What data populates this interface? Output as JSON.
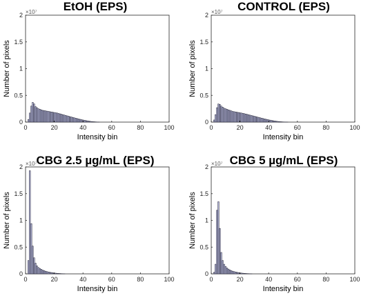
{
  "chart_data": [
    {
      "type": "bar",
      "title": "EtOH (EPS)",
      "xlabel": "Intensity bin",
      "ylabel": "Number of pixels",
      "y_exponent": "×10⁷",
      "xlim": [
        0,
        100
      ],
      "ylim": [
        0,
        2
      ],
      "xticks": [
        "0",
        "20",
        "40",
        "60",
        "80",
        "100"
      ],
      "yticks": [
        "0",
        "0.5",
        "1",
        "1.5",
        "2"
      ],
      "bar_color": "#b9bbe0",
      "x": [
        2,
        3,
        4,
        5,
        6,
        7,
        8,
        9,
        10,
        11,
        12,
        13,
        14,
        15,
        16,
        17,
        18,
        19,
        20,
        21,
        22,
        23,
        24,
        25,
        26,
        27,
        28,
        29,
        30,
        31,
        32,
        33,
        34,
        35,
        36,
        37,
        38,
        39,
        40,
        41,
        42,
        43,
        44,
        45,
        46,
        47,
        48,
        49,
        50,
        51
      ],
      "values": [
        0.05,
        0.17,
        0.3,
        0.37,
        0.34,
        0.29,
        0.27,
        0.25,
        0.24,
        0.23,
        0.22,
        0.215,
        0.21,
        0.205,
        0.2,
        0.195,
        0.19,
        0.185,
        0.18,
        0.175,
        0.17,
        0.162,
        0.155,
        0.148,
        0.14,
        0.132,
        0.125,
        0.117,
        0.11,
        0.102,
        0.095,
        0.088,
        0.08,
        0.073,
        0.066,
        0.059,
        0.052,
        0.046,
        0.04,
        0.034,
        0.029,
        0.024,
        0.019,
        0.015,
        0.011,
        0.008,
        0.006,
        0.004,
        0.002,
        0.001
      ]
    },
    {
      "type": "bar",
      "title": "CONTROL (EPS)",
      "xlabel": "Intensity bin",
      "ylabel": "Number of pixels",
      "y_exponent": "×10⁷",
      "xlim": [
        0,
        100
      ],
      "ylim": [
        0,
        2
      ],
      "xticks": [
        "0",
        "20",
        "40",
        "60",
        "80",
        "100"
      ],
      "yticks": [
        "0",
        "0.5",
        "1",
        "1.5",
        "2"
      ],
      "bar_color": "#b9bbe0",
      "x": [
        2,
        3,
        4,
        5,
        6,
        7,
        8,
        9,
        10,
        11,
        12,
        13,
        14,
        15,
        16,
        17,
        18,
        19,
        20,
        21,
        22,
        23,
        24,
        25,
        26,
        27,
        28,
        29,
        30,
        31,
        32,
        33,
        34,
        35,
        36,
        37,
        38,
        39,
        40,
        41,
        42,
        43,
        44,
        45,
        46,
        47,
        48,
        49,
        50,
        51,
        52,
        53
      ],
      "values": [
        0.04,
        0.14,
        0.27,
        0.34,
        0.33,
        0.3,
        0.28,
        0.26,
        0.25,
        0.24,
        0.23,
        0.22,
        0.21,
        0.2,
        0.195,
        0.19,
        0.185,
        0.18,
        0.175,
        0.17,
        0.165,
        0.158,
        0.152,
        0.145,
        0.138,
        0.131,
        0.124,
        0.117,
        0.11,
        0.103,
        0.096,
        0.089,
        0.082,
        0.075,
        0.068,
        0.061,
        0.055,
        0.049,
        0.043,
        0.037,
        0.032,
        0.027,
        0.022,
        0.018,
        0.014,
        0.011,
        0.008,
        0.006,
        0.004,
        0.003,
        0.002,
        0.001
      ]
    },
    {
      "type": "bar",
      "title": "CBG 2.5 µg/mL (EPS)",
      "xlabel": "Intensity bin",
      "ylabel": "Number of pixels",
      "y_exponent": "×10⁷",
      "xlim": [
        0,
        100
      ],
      "ylim": [
        0,
        2
      ],
      "xticks": [
        "0",
        "20",
        "40",
        "60",
        "80",
        "100"
      ],
      "yticks": [
        "0",
        "0.5",
        "1",
        "1.5",
        "2"
      ],
      "bar_color": "#b9bbe0",
      "x": [
        2,
        3,
        4,
        5,
        6,
        7,
        8,
        9,
        10,
        11,
        12,
        13,
        14,
        15,
        16,
        17,
        18,
        19,
        20,
        21,
        22,
        23,
        24,
        25,
        26,
        27
      ],
      "values": [
        0.25,
        1.93,
        0.94,
        0.52,
        0.3,
        0.2,
        0.15,
        0.12,
        0.1,
        0.085,
        0.07,
        0.06,
        0.05,
        0.042,
        0.035,
        0.03,
        0.025,
        0.02,
        0.016,
        0.013,
        0.01,
        0.008,
        0.006,
        0.004,
        0.003,
        0.002
      ]
    },
    {
      "type": "bar",
      "title": "CBG 5 µg/mL (EPS)",
      "xlabel": "Intensity bin",
      "ylabel": "Number of pixels",
      "y_exponent": "×10⁷",
      "xlim": [
        0,
        100
      ],
      "ylim": [
        0,
        2
      ],
      "xticks": [
        "0",
        "20",
        "40",
        "60",
        "80",
        "100"
      ],
      "yticks": [
        "0",
        "0.5",
        "1",
        "1.5",
        "2"
      ],
      "bar_color": "#b9bbe0",
      "x": [
        2,
        3,
        4,
        5,
        6,
        7,
        8,
        9,
        10,
        11,
        12,
        13,
        14,
        15,
        16,
        17,
        18,
        19,
        20,
        21,
        22,
        23,
        24,
        25,
        26,
        27,
        28
      ],
      "values": [
        0.03,
        0.18,
        1.19,
        1.35,
        0.85,
        0.4,
        0.25,
        0.18,
        0.14,
        0.11,
        0.09,
        0.075,
        0.06,
        0.05,
        0.042,
        0.035,
        0.029,
        0.024,
        0.019,
        0.015,
        0.012,
        0.009,
        0.007,
        0.005,
        0.004,
        0.003,
        0.002
      ]
    }
  ]
}
